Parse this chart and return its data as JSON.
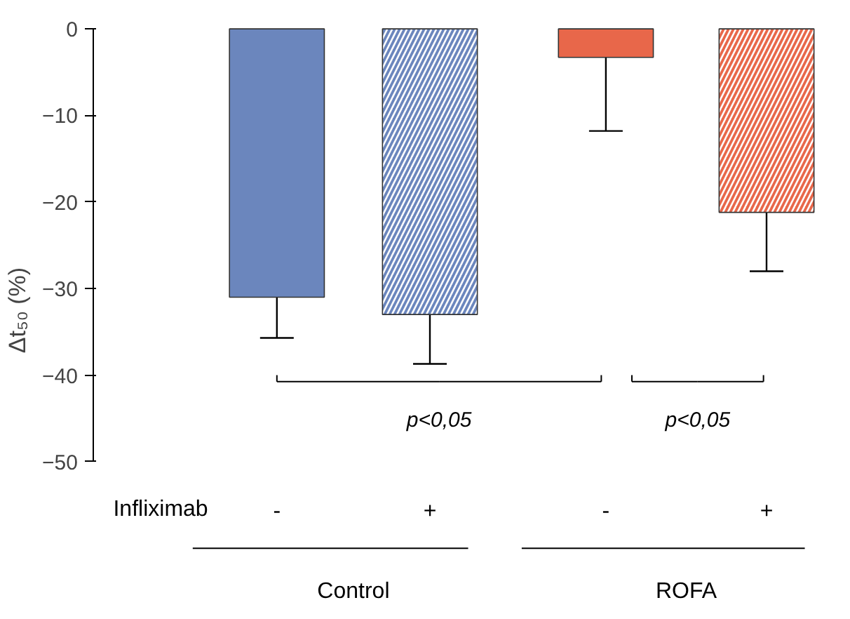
{
  "chart_data": {
    "type": "bar",
    "ylabel": "Δt₅₀ (%)",
    "categories": [
      "-",
      "+",
      "-",
      "+"
    ],
    "series": [
      {
        "values": [
          -31,
          null,
          -3.3,
          null
        ],
        "colors": [
          "#6b86bd",
          null,
          "#e8674a",
          null
        ],
        "errors": [
          [
            -35.7,
            -31
          ],
          null,
          [
            -11.8,
            -3.3
          ],
          null
        ]
      },
      {
        "values": [
          null,
          -33,
          null,
          -21.2
        ],
        "colors": [
          null,
          "#6b86bd",
          null,
          "#e8674a"
        ],
        "errors": [
          null,
          [
            -38.7,
            -33
          ],
          null,
          [
            -28,
            -21.2
          ]
        ]
      }
    ],
    "ylim": [
      -50,
      0
    ],
    "yticks": [
      0,
      -10,
      -20,
      -30,
      -40,
      -50
    ],
    "grid": false,
    "annotations": [
      "Infliximab",
      "Control",
      "ROFA",
      "p<0,05",
      "p<0,05"
    ]
  }
}
